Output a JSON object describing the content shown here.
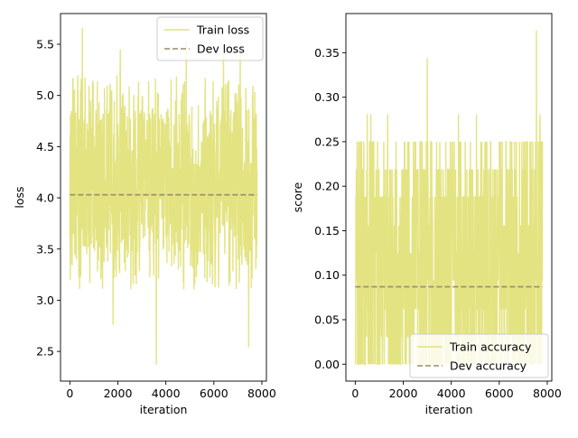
{
  "chart_data": [
    {
      "type": "line",
      "xlabel": "iteration",
      "ylabel": "loss",
      "xlim": [
        -390,
        8190
      ],
      "ylim": [
        2.21,
        5.8
      ],
      "xticks": [
        0,
        2000,
        4000,
        6000,
        8000
      ],
      "xtick_labels": [
        "0",
        "2000",
        "4000",
        "6000",
        "8000"
      ],
      "yticks": [
        2.5,
        3.0,
        3.5,
        4.0,
        4.5,
        5.0,
        5.5
      ],
      "ytick_labels": [
        "2.5",
        "3.0",
        "3.5",
        "4.0",
        "4.5",
        "5.0",
        "5.5"
      ],
      "legend_position": "top-right",
      "grid": false,
      "series": [
        {
          "name": "Train loss",
          "style": "solid",
          "color": "#e2e27a",
          "x_range": [
            0,
            7800
          ],
          "typical_band": [
            3.1,
            5.2
          ],
          "spikes": [
            {
              "x": 520,
              "y": 5.66
            },
            {
              "x": 3600,
              "y": 2.37
            },
            {
              "x": 7450,
              "y": 2.54
            },
            {
              "x": 2100,
              "y": 5.45
            },
            {
              "x": 6400,
              "y": 5.42
            },
            {
              "x": 1800,
              "y": 2.76
            },
            {
              "x": 4850,
              "y": 5.53
            },
            {
              "x": 7100,
              "y": 5.58
            }
          ]
        },
        {
          "name": "Dev loss",
          "style": "dashed",
          "color": "#9b8b66",
          "x": [
            0,
            7800
          ],
          "y": [
            4.03,
            4.03
          ]
        }
      ]
    },
    {
      "type": "line",
      "xlabel": "iteration",
      "ylabel": "score",
      "xlim": [
        -390,
        8190
      ],
      "ylim": [
        -0.019,
        0.394
      ],
      "xticks": [
        0,
        2000,
        4000,
        6000,
        8000
      ],
      "xtick_labels": [
        "0",
        "2000",
        "4000",
        "6000",
        "8000"
      ],
      "yticks": [
        0.0,
        0.05,
        0.1,
        0.15,
        0.2,
        0.25,
        0.3,
        0.35
      ],
      "ytick_labels": [
        "0.00",
        "0.05",
        "0.10",
        "0.15",
        "0.20",
        "0.25",
        "0.30",
        "0.35"
      ],
      "legend_position": "bottom-right",
      "grid": false,
      "series": [
        {
          "name": "Train accuracy",
          "style": "solid",
          "color": "#e2e27a",
          "x_range": [
            0,
            7800
          ],
          "typical_band": [
            0.0,
            0.22
          ],
          "spikes": [
            {
              "x": 3000,
              "y": 0.344
            },
            {
              "x": 7550,
              "y": 0.375
            },
            {
              "x": 500,
              "y": 0.281
            },
            {
              "x": 1350,
              "y": 0.281
            },
            {
              "x": 4300,
              "y": 0.281
            },
            {
              "x": 7700,
              "y": 0.281
            },
            {
              "x": 650,
              "y": 0.281
            },
            {
              "x": 5050,
              "y": 0.281
            }
          ]
        },
        {
          "name": "Dev accuracy",
          "style": "dashed",
          "color": "#9b8b66",
          "x": [
            0,
            7800
          ],
          "y": [
            0.087,
            0.087
          ]
        }
      ]
    }
  ]
}
